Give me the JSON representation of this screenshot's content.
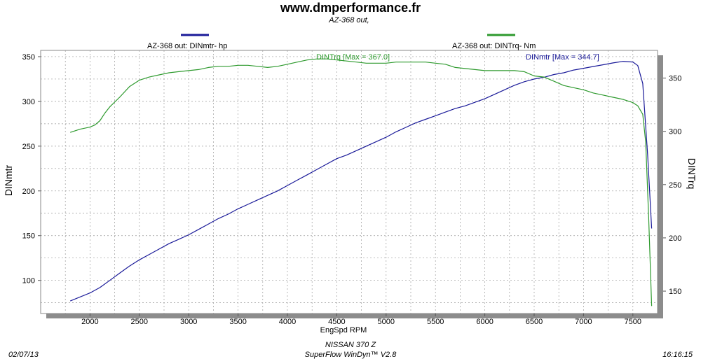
{
  "header": {
    "site": "www.dmperformance.fr",
    "run": "AZ-368 out,"
  },
  "footer": {
    "date": "02/07/13",
    "vehicle": "NISSAN 370 Z",
    "software": "SuperFlow WinDyn™ V2.8",
    "time": "16:16:15"
  },
  "colors": {
    "power": "#1a1a99",
    "torque": "#2e9a2e",
    "plot_bg": "#ffffff",
    "frame": "#8a8a8a"
  },
  "chart_data": {
    "type": "line",
    "xlabel": "EngSpd  RPM",
    "ylabel_left": "DINmtr",
    "ylabel_right": "DINTrq",
    "xlim": [
      1500,
      7750
    ],
    "ylim_left": [
      63,
      357
    ],
    "ylim_right": [
      129,
      376
    ],
    "x_ticks": [
      2000,
      2500,
      3000,
      3500,
      4000,
      4500,
      5000,
      5500,
      6000,
      6500,
      7000,
      7500
    ],
    "y_ticks_left": [
      100,
      150,
      200,
      250,
      300,
      350
    ],
    "y_ticks_right": [
      150,
      200,
      250,
      300,
      350
    ],
    "grid": true,
    "legend": [
      {
        "label": "AZ-368 out: DINmtr-  hp",
        "series": "power"
      },
      {
        "label": "AZ-368 out: DINTrq-  Nm",
        "series": "torque"
      }
    ],
    "annotations": {
      "power_max": "DINmtr [Max = 344.7]",
      "torque_max": "DINTrq [Max = 367.0]"
    },
    "series": [
      {
        "name": "DINmtr",
        "axis": "left",
        "x": [
          1800,
          2000,
          2100,
          2200,
          2300,
          2400,
          2500,
          2600,
          2700,
          2800,
          2900,
          3000,
          3100,
          3200,
          3300,
          3400,
          3500,
          3600,
          3700,
          3800,
          3900,
          4000,
          4100,
          4200,
          4300,
          4400,
          4500,
          4600,
          4700,
          4800,
          4900,
          5000,
          5100,
          5200,
          5300,
          5400,
          5500,
          5600,
          5700,
          5800,
          5900,
          6000,
          6100,
          6200,
          6300,
          6400,
          6500,
          6600,
          6700,
          6800,
          6900,
          7000,
          7100,
          7200,
          7300,
          7400,
          7500,
          7550,
          7600,
          7650,
          7690
        ],
        "values": [
          77,
          86,
          92,
          100,
          108,
          116,
          123,
          129,
          135,
          141,
          146,
          151,
          157,
          163,
          169,
          174,
          180,
          185,
          190,
          195,
          200,
          206,
          212,
          218,
          224,
          230,
          236,
          240,
          245,
          250,
          255,
          260,
          266,
          271,
          276,
          280,
          284,
          288,
          292,
          295,
          299,
          303,
          308,
          313,
          318,
          322,
          325,
          327,
          330,
          332,
          335,
          337,
          339,
          341,
          343,
          344.7,
          344,
          340,
          320,
          240,
          158
        ]
      },
      {
        "name": "DINTrq",
        "axis": "right",
        "x": [
          1800,
          1900,
          2000,
          2050,
          2100,
          2150,
          2200,
          2300,
          2400,
          2500,
          2600,
          2700,
          2800,
          2900,
          3000,
          3100,
          3200,
          3300,
          3400,
          3500,
          3600,
          3700,
          3800,
          3900,
          4000,
          4100,
          4200,
          4300,
          4400,
          4500,
          4600,
          4700,
          4800,
          4900,
          5000,
          5100,
          5200,
          5300,
          5400,
          5500,
          5600,
          5700,
          5800,
          5900,
          6000,
          6100,
          6200,
          6300,
          6400,
          6500,
          6600,
          6700,
          6800,
          6900,
          7000,
          7100,
          7200,
          7300,
          7400,
          7500,
          7550,
          7600,
          7630,
          7660,
          7690
        ],
        "values": [
          299,
          302,
          304,
          306,
          310,
          317,
          323,
          332,
          342,
          348,
          351,
          353,
          355,
          356,
          357,
          358,
          360,
          361,
          361,
          362,
          362,
          361,
          360,
          361,
          363,
          365,
          367,
          368,
          368,
          367,
          366,
          365,
          364,
          364,
          364,
          365,
          365,
          365,
          365,
          364,
          363,
          360,
          359,
          358,
          357,
          357,
          357,
          357,
          356,
          352,
          351,
          347,
          343,
          341,
          339,
          336,
          334,
          332,
          330,
          327,
          324,
          316,
          290,
          220,
          136
        ]
      }
    ]
  }
}
